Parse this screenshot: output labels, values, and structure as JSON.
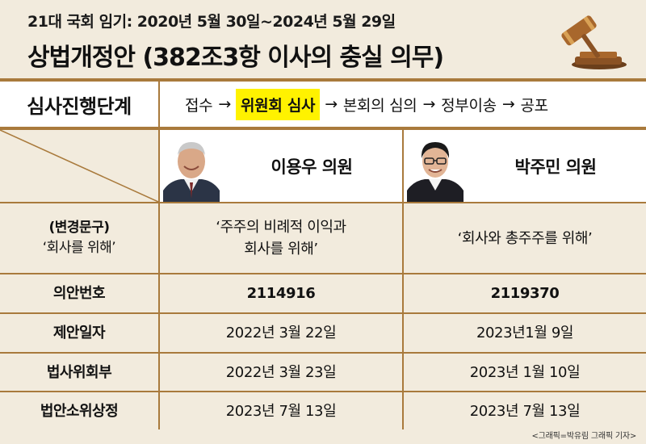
{
  "header": {
    "subtitle": "21대 국회 임기: 2020년 5월 30일~2024년 5월 29일",
    "title": "상법개정안 (382조3항 이사의 충실 의무)",
    "icon": "gavel-icon"
  },
  "stage": {
    "label": "심사진행단계",
    "steps": [
      "접수",
      "위원회 심사",
      "본회의 심의",
      "정부이송",
      "공포"
    ],
    "arrow": "→",
    "current_step": "위원회 심사",
    "highlight_color": "#fff200"
  },
  "lawmakers": [
    {
      "name": "이용우 의원"
    },
    {
      "name": "박주민 의원"
    }
  ],
  "rows": [
    {
      "label_line1": "(변경문구)",
      "label_line2": "‘회사를 위해’",
      "left_line1": "‘주주의 비례적 이익과",
      "left_line2": "회사를 위해’",
      "right": "‘회사와 총주주를 위해’"
    },
    {
      "label": "의안번호",
      "left": "2114916",
      "right": "2119370"
    },
    {
      "label": "제안일자",
      "left": "2022년 3월 22일",
      "right": "2023년1월 9일"
    },
    {
      "label": "법사위회부",
      "left": "2022년 3월 23일",
      "right": "2023년 1월 10일"
    },
    {
      "label": "법안소위상정",
      "left": "2023년 7월 13일",
      "right": "2023년 7월 13일"
    }
  ],
  "credit": "<그래픽=박유림 그래픽 기자>",
  "colors": {
    "background": "#f2ebdd",
    "rule": "#a97a3c",
    "highlight": "#fff200"
  }
}
